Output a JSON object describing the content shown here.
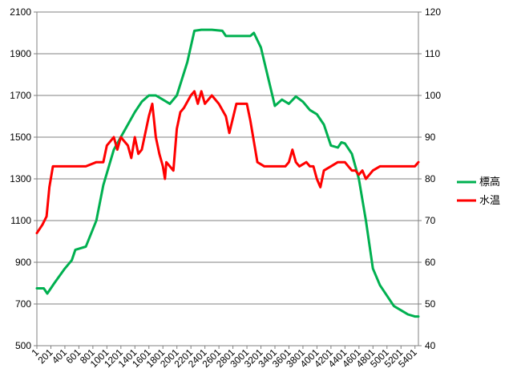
{
  "chart_data": {
    "type": "line",
    "title": "",
    "xlabel": "",
    "ylabel": "",
    "y2label": "",
    "grid": true,
    "legend_position": "right",
    "x_ticks": [
      "1",
      "201",
      "401",
      "601",
      "801",
      "1001",
      "1201",
      "1401",
      "1601",
      "1801",
      "2001",
      "2201",
      "2401",
      "2601",
      "2801",
      "3001",
      "3201",
      "3401",
      "3601",
      "3801",
      "4001",
      "4201",
      "4401",
      "4601",
      "4801",
      "5001",
      "5201",
      "5401"
    ],
    "xlim": [
      1,
      5450
    ],
    "ylim": [
      500,
      2100
    ],
    "y_ticks": [
      500,
      700,
      900,
      1100,
      1300,
      1500,
      1700,
      1900,
      2100
    ],
    "y2lim": [
      40,
      120
    ],
    "y2_ticks": [
      40,
      50,
      60,
      70,
      80,
      90,
      100,
      110,
      120
    ],
    "series": [
      {
        "name": "標高",
        "color": "#00b050",
        "axis": "left",
        "points": [
          [
            1,
            775
          ],
          [
            100,
            775
          ],
          [
            150,
            750
          ],
          [
            250,
            800
          ],
          [
            400,
            870
          ],
          [
            500,
            910
          ],
          [
            550,
            960
          ],
          [
            700,
            975
          ],
          [
            850,
            1100
          ],
          [
            950,
            1270
          ],
          [
            1100,
            1440
          ],
          [
            1200,
            1500
          ],
          [
            1300,
            1560
          ],
          [
            1400,
            1620
          ],
          [
            1500,
            1670
          ],
          [
            1600,
            1700
          ],
          [
            1700,
            1700
          ],
          [
            1800,
            1680
          ],
          [
            1900,
            1660
          ],
          [
            2000,
            1700
          ],
          [
            2150,
            1860
          ],
          [
            2250,
            2010
          ],
          [
            2350,
            2015
          ],
          [
            2500,
            2015
          ],
          [
            2650,
            2010
          ],
          [
            2700,
            1985
          ],
          [
            2900,
            1985
          ],
          [
            3050,
            1985
          ],
          [
            3100,
            2000
          ],
          [
            3200,
            1930
          ],
          [
            3300,
            1790
          ],
          [
            3400,
            1650
          ],
          [
            3500,
            1680
          ],
          [
            3600,
            1660
          ],
          [
            3700,
            1695
          ],
          [
            3800,
            1670
          ],
          [
            3900,
            1630
          ],
          [
            4000,
            1610
          ],
          [
            4100,
            1560
          ],
          [
            4200,
            1460
          ],
          [
            4300,
            1450
          ],
          [
            4350,
            1475
          ],
          [
            4400,
            1470
          ],
          [
            4500,
            1420
          ],
          [
            4600,
            1300
          ],
          [
            4700,
            1100
          ],
          [
            4800,
            870
          ],
          [
            4900,
            790
          ],
          [
            5000,
            740
          ],
          [
            5100,
            690
          ],
          [
            5200,
            670
          ],
          [
            5300,
            650
          ],
          [
            5400,
            640
          ],
          [
            5450,
            640
          ]
        ]
      },
      {
        "name": "水温",
        "color": "#ff0000",
        "axis": "right",
        "points": [
          [
            1,
            67
          ],
          [
            80,
            69
          ],
          [
            140,
            71
          ],
          [
            180,
            78
          ],
          [
            230,
            83
          ],
          [
            350,
            83
          ],
          [
            450,
            83
          ],
          [
            550,
            83
          ],
          [
            700,
            83
          ],
          [
            850,
            84
          ],
          [
            950,
            84
          ],
          [
            1000,
            88
          ],
          [
            1100,
            90
          ],
          [
            1150,
            87
          ],
          [
            1200,
            90
          ],
          [
            1300,
            88
          ],
          [
            1350,
            85
          ],
          [
            1400,
            90
          ],
          [
            1450,
            86
          ],
          [
            1500,
            87
          ],
          [
            1600,
            95
          ],
          [
            1650,
            98
          ],
          [
            1700,
            90
          ],
          [
            1750,
            86
          ],
          [
            1800,
            83
          ],
          [
            1830,
            80
          ],
          [
            1850,
            84
          ],
          [
            1900,
            83
          ],
          [
            1950,
            82
          ],
          [
            2000,
            92
          ],
          [
            2050,
            96
          ],
          [
            2100,
            97
          ],
          [
            2200,
            100
          ],
          [
            2250,
            101
          ],
          [
            2300,
            98
          ],
          [
            2350,
            101
          ],
          [
            2400,
            98
          ],
          [
            2500,
            100
          ],
          [
            2600,
            98
          ],
          [
            2700,
            95
          ],
          [
            2750,
            91
          ],
          [
            2850,
            98
          ],
          [
            2950,
            98
          ],
          [
            3000,
            98
          ],
          [
            3050,
            94
          ],
          [
            3150,
            84
          ],
          [
            3250,
            83
          ],
          [
            3350,
            83
          ],
          [
            3450,
            83
          ],
          [
            3550,
            83
          ],
          [
            3600,
            84
          ],
          [
            3650,
            87
          ],
          [
            3700,
            84
          ],
          [
            3750,
            83
          ],
          [
            3850,
            84
          ],
          [
            3900,
            83
          ],
          [
            3950,
            83
          ],
          [
            4000,
            80
          ],
          [
            4050,
            78
          ],
          [
            4100,
            82
          ],
          [
            4200,
            83
          ],
          [
            4300,
            84
          ],
          [
            4400,
            84
          ],
          [
            4450,
            83
          ],
          [
            4500,
            82
          ],
          [
            4550,
            82
          ],
          [
            4600,
            81
          ],
          [
            4650,
            82
          ],
          [
            4700,
            80
          ],
          [
            4800,
            82
          ],
          [
            4900,
            83
          ],
          [
            5000,
            83
          ],
          [
            5100,
            83
          ],
          [
            5200,
            83
          ],
          [
            5300,
            83
          ],
          [
            5400,
            83
          ],
          [
            5450,
            84
          ]
        ]
      }
    ]
  }
}
